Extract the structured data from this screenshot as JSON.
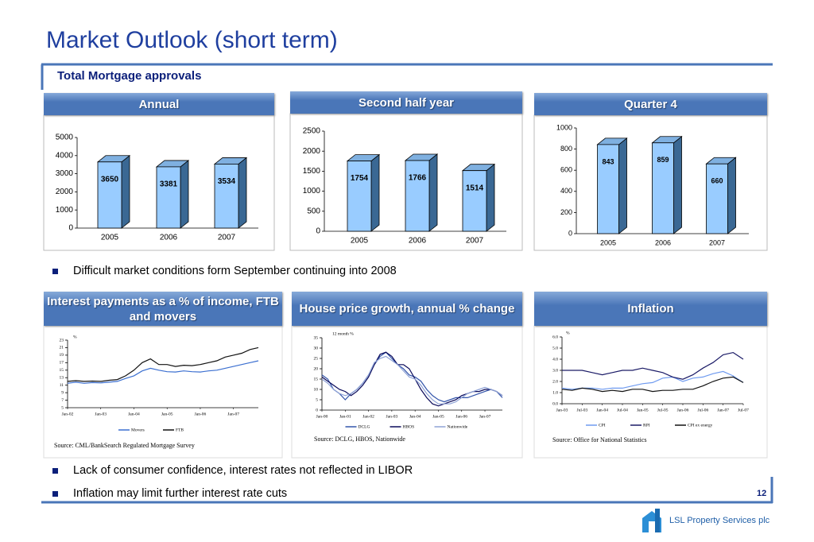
{
  "title": "Market Outlook (short term)",
  "subtitle": "Total Mortgage approvals",
  "bullets": [
    "Difficult market conditions form September continuing into 2008",
    "Lack of consumer confidence, interest rates not reflected in LIBOR",
    "Inflation may limit further interest rate cuts"
  ],
  "page_number": "12",
  "logo": "LSL Property Services plc",
  "chart_data": [
    {
      "type": "bar",
      "title": "Annual",
      "categories": [
        "2005",
        "2006",
        "2007"
      ],
      "values": [
        3650,
        3381,
        3534
      ],
      "color": "#99ccff",
      "ylim": [
        0,
        5000
      ],
      "yticks": [
        0,
        1000,
        2000,
        3000,
        4000,
        5000
      ]
    },
    {
      "type": "bar",
      "title": "Second half year",
      "categories": [
        "2005",
        "2006",
        "2007"
      ],
      "values": [
        1754,
        1766,
        1514
      ],
      "color": "#99ccff",
      "ylim": [
        0,
        2500
      ],
      "yticks": [
        0,
        500,
        1000,
        1500,
        2000,
        2500
      ]
    },
    {
      "type": "bar",
      "title": "Quarter 4",
      "categories": [
        "2005",
        "2006",
        "2007"
      ],
      "values": [
        843,
        859,
        660
      ],
      "color": "#99ccff",
      "ylim": [
        0,
        1000
      ],
      "yticks": [
        0,
        200,
        400,
        600,
        800,
        1000
      ]
    },
    {
      "type": "line",
      "title": "Interest payments as a % of income, FTB and movers",
      "annotation": "%",
      "source": "Source: CML/BankSearch Regulated Mortgage Survey",
      "categories": [
        "Jan-02",
        null,
        null,
        null,
        "Jan-03",
        null,
        null,
        null,
        "Jan-04",
        null,
        null,
        null,
        "Jan-05",
        null,
        null,
        null,
        "Jan-06",
        null,
        null,
        null,
        "Jan-07",
        null,
        null,
        null
      ],
      "series": [
        {
          "name": "Movers",
          "color": "#3b6fd0",
          "values": [
            11.5,
            11.8,
            11.5,
            11.7,
            11.6,
            11.8,
            12,
            12.8,
            13.5,
            14.8,
            15.5,
            15,
            14.6,
            14.5,
            14.8,
            14.6,
            14.5,
            14.8,
            15,
            15.5,
            16,
            16.5,
            17,
            17.5
          ]
        },
        {
          "name": "FTB",
          "color": "#111111",
          "values": [
            12,
            12.2,
            12,
            12.1,
            12,
            12.3,
            12.5,
            13.5,
            15,
            17,
            18,
            16.5,
            16.5,
            16,
            16.3,
            16.2,
            16.5,
            17,
            17.5,
            18.5,
            19,
            19.5,
            20.5,
            21
          ]
        }
      ],
      "ylim": [
        5,
        23
      ],
      "yticks": [
        5,
        7,
        9,
        11,
        13,
        15,
        17,
        19,
        21,
        23
      ]
    },
    {
      "type": "line",
      "title": "House price growth, annual % change",
      "annotation": "12 month %",
      "source": "Source: DCLG, HBOS, Nationwide",
      "categories": [
        "Jan-00",
        null,
        null,
        null,
        "Jan-01",
        null,
        null,
        null,
        "Jan-02",
        null,
        null,
        null,
        "Jan-03",
        null,
        null,
        null,
        "Jan-04",
        null,
        null,
        null,
        "Jan-05",
        null,
        null,
        null,
        "Jan-06",
        null,
        null,
        null,
        "Jan-07",
        null,
        null,
        null
      ],
      "series": [
        {
          "name": "DCLG",
          "color": "#3355aa",
          "values": [
            17,
            15,
            10,
            8,
            5,
            8,
            10,
            13,
            17,
            22,
            26,
            28,
            25,
            22,
            20,
            17,
            16,
            14,
            10,
            7,
            5,
            4,
            5,
            6,
            6,
            6,
            7,
            8,
            9,
            10,
            9,
            6
          ]
        },
        {
          "name": "HBOS",
          "color": "#0a0a5a",
          "values": [
            16,
            14,
            12,
            10,
            9,
            7,
            9,
            12,
            16,
            22,
            27,
            28,
            26,
            22,
            22,
            20,
            15,
            10,
            6,
            3,
            2,
            3,
            4,
            5,
            7,
            8,
            9,
            9,
            10,
            10,
            9,
            7
          ]
        },
        {
          "name": "Nationwide",
          "color": "#8fa3d6",
          "values": [
            15,
            13,
            10,
            8,
            7,
            8,
            10,
            13,
            17,
            23,
            25,
            26,
            24,
            22,
            19,
            16,
            15,
            12,
            8,
            5,
            3,
            3,
            3,
            4,
            6,
            8,
            9,
            10,
            11,
            10,
            9,
            7
          ]
        }
      ],
      "ylim": [
        0,
        35
      ],
      "yticks": [
        0,
        5,
        10,
        15,
        20,
        25,
        30,
        35
      ]
    },
    {
      "type": "line",
      "title": "Inflation",
      "annotation": "%",
      "source": "Source: Office for National Statistics",
      "categories": [
        "Jan-03",
        null,
        "Jul-03",
        null,
        "Jan-04",
        null,
        "Jul-04",
        null,
        "Jan-05",
        null,
        "Jul-05",
        null,
        "Jan-06",
        null,
        "Jul-06",
        null,
        "Jan-07",
        null,
        "Jul-07"
      ],
      "series": [
        {
          "name": "CPI",
          "color": "#6f9bf0",
          "values": [
            1.4,
            1.3,
            1.4,
            1.4,
            1.3,
            1.4,
            1.4,
            1.6,
            1.8,
            1.9,
            2.3,
            2.4,
            2,
            2.3,
            2.4,
            2.7,
            2.9,
            2.5,
            1.9
          ]
        },
        {
          "name": "RPI",
          "color": "#1a1a66",
          "values": [
            3,
            3,
            3,
            2.8,
            2.6,
            2.8,
            3,
            3,
            3.2,
            3,
            2.8,
            2.4,
            2.2,
            2.6,
            3.2,
            3.7,
            4.4,
            4.6,
            4
          ]
        },
        {
          "name": "CPI ex energy",
          "color": "#111111",
          "values": [
            1.3,
            1.2,
            1.4,
            1.3,
            1.1,
            1.2,
            1.1,
            1.3,
            1.3,
            1.1,
            1.2,
            1.2,
            1.3,
            1.3,
            1.6,
            2,
            2.3,
            2.4,
            1.9
          ]
        }
      ],
      "ylim": [
        0,
        6
      ],
      "yticks": [
        {
          "value": 0,
          "label": "0.0"
        },
        {
          "value": 1,
          "label": "1.0"
        },
        {
          "value": 2,
          "label": "2.0"
        },
        {
          "value": 3,
          "label": "3.0"
        },
        {
          "value": 4,
          "label": "4.0"
        },
        {
          "value": 5,
          "label": "5.0"
        },
        {
          "value": 6,
          "label": "6.0"
        }
      ]
    }
  ]
}
